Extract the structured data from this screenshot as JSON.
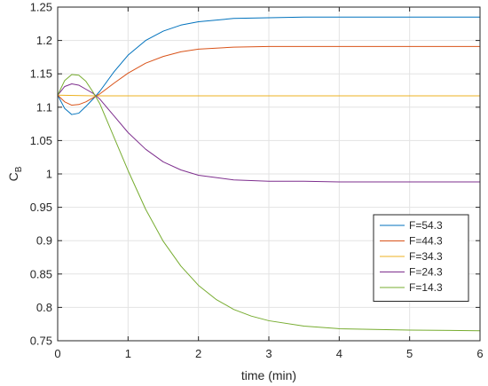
{
  "chart_data": {
    "type": "line",
    "xlabel": "time (min)",
    "ylabel": {
      "main": "C",
      "sub": "B"
    },
    "xlim": [
      0,
      6
    ],
    "ylim": [
      0.75,
      1.25
    ],
    "xticks": [
      0,
      1,
      2,
      3,
      4,
      5,
      6
    ],
    "yticks": [
      0.75,
      0.8,
      0.85,
      0.9,
      0.95,
      1,
      1.05,
      1.1,
      1.15,
      1.2,
      1.25
    ],
    "xtick_labels": [
      "0",
      "1",
      "2",
      "3",
      "4",
      "5",
      "6"
    ],
    "ytick_labels": [
      "0.75",
      "0.8",
      "0.85",
      "0.9",
      "0.95",
      "1",
      "1.05",
      "1.1",
      "1.15",
      "1.2",
      "1.25"
    ],
    "grid": true,
    "legend_position": "right",
    "series": [
      {
        "name": "F=54.3",
        "color": "#0072BD",
        "x": [
          0,
          0.1,
          0.2,
          0.3,
          0.4,
          0.5,
          0.6,
          0.8,
          1.0,
          1.25,
          1.5,
          1.75,
          2.0,
          2.5,
          3.0,
          3.5,
          4.0,
          5.0,
          6.0
        ],
        "y": [
          1.118,
          1.098,
          1.089,
          1.091,
          1.101,
          1.112,
          1.124,
          1.153,
          1.178,
          1.2,
          1.214,
          1.223,
          1.228,
          1.233,
          1.234,
          1.235,
          1.235,
          1.235,
          1.235
        ]
      },
      {
        "name": "F=44.3",
        "color": "#D95319",
        "x": [
          0,
          0.1,
          0.2,
          0.3,
          0.4,
          0.5,
          0.6,
          0.8,
          1.0,
          1.25,
          1.5,
          1.75,
          2.0,
          2.5,
          3.0,
          3.5,
          4.0,
          5.0,
          6.0
        ],
        "y": [
          1.118,
          1.108,
          1.103,
          1.104,
          1.108,
          1.114,
          1.12,
          1.136,
          1.151,
          1.166,
          1.176,
          1.183,
          1.187,
          1.19,
          1.191,
          1.191,
          1.191,
          1.191,
          1.191
        ]
      },
      {
        "name": "F=34.3",
        "color": "#EDB120",
        "x": [
          0,
          0.5,
          1,
          2,
          3,
          4,
          5,
          6
        ],
        "y": [
          1.118,
          1.117,
          1.117,
          1.117,
          1.117,
          1.117,
          1.117,
          1.117
        ]
      },
      {
        "name": "F=24.3",
        "color": "#7E2F8E",
        "x": [
          0,
          0.1,
          0.2,
          0.3,
          0.4,
          0.5,
          0.6,
          0.8,
          1.0,
          1.25,
          1.5,
          1.75,
          2.0,
          2.5,
          3.0,
          3.5,
          4.0,
          5.0,
          6.0
        ],
        "y": [
          1.118,
          1.131,
          1.135,
          1.133,
          1.127,
          1.121,
          1.112,
          1.087,
          1.062,
          1.037,
          1.018,
          1.006,
          0.998,
          0.991,
          0.989,
          0.989,
          0.988,
          0.988,
          0.988
        ]
      },
      {
        "name": "F=14.3",
        "color": "#77AC30",
        "x": [
          0,
          0.1,
          0.2,
          0.3,
          0.4,
          0.5,
          0.6,
          0.8,
          1.0,
          1.25,
          1.5,
          1.75,
          2.0,
          2.25,
          2.5,
          2.75,
          3.0,
          3.5,
          4.0,
          4.5,
          5.0,
          6.0
        ],
        "y": [
          1.118,
          1.14,
          1.149,
          1.148,
          1.139,
          1.123,
          1.105,
          1.055,
          1.005,
          0.947,
          0.899,
          0.862,
          0.833,
          0.812,
          0.797,
          0.787,
          0.78,
          0.772,
          0.768,
          0.767,
          0.766,
          0.765
        ]
      }
    ]
  }
}
